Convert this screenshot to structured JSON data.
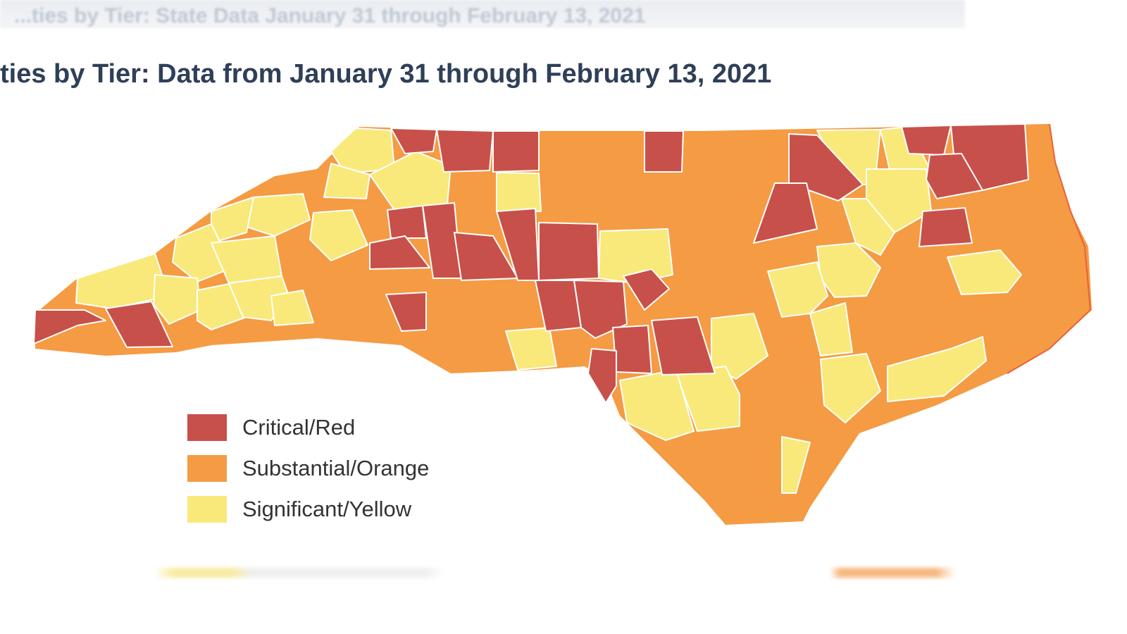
{
  "header": {
    "background_text": "...ties by Tier: State Data January 31 through February 13, 2021"
  },
  "title": "ties by Tier: Data from January 31 through February 13, 2021",
  "legend": {
    "items": [
      {
        "label": "Critical/Red",
        "color": "#c8504a"
      },
      {
        "label": "Substantial/Orange",
        "color": "#f59b43"
      },
      {
        "label": "Significant/Yellow",
        "color": "#f8e97a"
      }
    ]
  },
  "colors": {
    "outline": "#ffffff",
    "coast": "#e8623a",
    "title_text": "#2f3f58"
  }
}
